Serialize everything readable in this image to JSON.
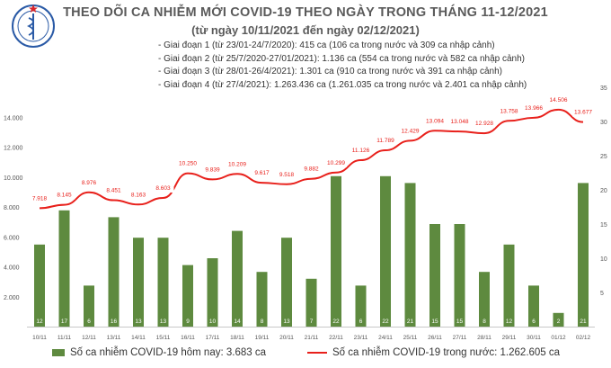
{
  "title": "THEO DÕI CA NHIỄM MỚI COVID-19 THEO NGÀY TRONG THÁNG 11-12/2021",
  "subtitle": "(từ ngày 10/11/2021 đến ngày 02/12/2021)",
  "info_lines": [
    "Giai đoạn 1 (từ 23/01-24/7/2020): 415 ca (106 ca trong nước và 309 ca nhập cảnh)",
    "Giai đoạn 2 (từ 25/7/2020-27/01/2021): 1.136 ca (554 ca trong nước và 582 ca nhập cảnh)",
    "Giai đoạn 3 (từ 28/01-26/4/2021): 1.301 ca (910 ca trong nước và 391 ca nhập cảnh)",
    "Giai đoạn 4 (từ 27/4/2021): 1.263.436 ca (1.261.035 ca trong nước và 2.401 ca nhập cảnh)"
  ],
  "logo_text": "BỘ Y TẾ",
  "colors": {
    "bar": "#5e8a3f",
    "line": "#e8201b",
    "text": "#333333",
    "title": "#5a5a5a"
  },
  "chart_data": {
    "type": "bar",
    "categories": [
      "10/11",
      "11/11",
      "12/11",
      "13/11",
      "14/11",
      "15/11",
      "16/11",
      "17/11",
      "18/11",
      "19/11",
      "20/11",
      "21/11",
      "22/11",
      "23/11",
      "24/11",
      "25/11",
      "26/11",
      "27/11",
      "28/11",
      "29/11",
      "30/11",
      "01/12",
      "02/12"
    ],
    "series": [
      {
        "name": "Số ca nhiễm COVID-19 hôm nay: 3.683 ca",
        "axis": "right",
        "values": [
          12,
          17,
          6,
          16,
          13,
          13,
          9,
          10,
          14,
          8,
          13,
          7,
          22,
          6,
          22,
          21,
          15,
          15,
          8,
          12,
          6,
          2,
          21
        ]
      },
      {
        "name": "Số ca nhiễm COVID-19 trong nước: 1.262.605 ca",
        "axis": "left",
        "values": [
          7918,
          8145,
          8976,
          8451,
          8163,
          8603,
          10250,
          9839,
          10209,
          9617,
          9518,
          9882,
          10299,
          11126,
          11789,
          12429,
          13094,
          13048,
          12928,
          13758,
          13966,
          14506,
          13677
        ],
        "labels": [
          "7.918",
          "8.145",
          "8.976",
          "8.451",
          "8.163",
          "8.603",
          "10.250",
          "9.839",
          "10.209",
          "9.617",
          "9.518",
          "9.882",
          "10.299",
          "11.126",
          "11.789",
          "12.429",
          "13.094",
          "13.048",
          "12.928",
          "13.758",
          "13.966",
          "14.506",
          "13.677"
        ]
      }
    ],
    "y_left": {
      "min": 0,
      "max": 16000,
      "ticks": [
        "",
        "2.000",
        "4.000",
        "6.000",
        "8.000",
        "10.000",
        "12.000",
        "14.000"
      ]
    },
    "y_right": {
      "min": 0,
      "max": 35,
      "ticks": [
        "",
        "5",
        "10",
        "15",
        "20",
        "25",
        "30",
        "35"
      ]
    },
    "grid": false,
    "legend": "bottom"
  }
}
